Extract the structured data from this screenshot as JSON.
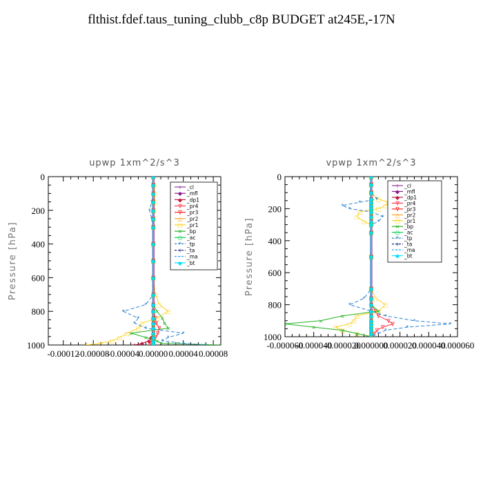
{
  "title": "flthist.fdef.taus_tuning_clubb_c8p  BUDGET at245E,-17N",
  "legend_entries": [
    "_cl",
    "_mfl",
    "_dp1",
    "_pr4",
    "_pr3",
    "_pr2",
    "_pr1",
    "_bp",
    "_ac",
    "_tp",
    "_ta",
    "_ma",
    "_bt"
  ],
  "series_colors": {
    "_cl": "#8e3a9e",
    "_mfl": "#8b1a8b",
    "_dp1": "#c0163c",
    "_pr4": "#ff3344",
    "_pr3": "#ff2020",
    "_pr2": "#ffa020",
    "_pr1": "#ffd21e",
    "_bp": "#22b022",
    "_ac": "#00d050",
    "_tp": "#2a7fd0",
    "_ta": "#10207f",
    "_ma": "#1e90ff",
    "_bt": "#00e0ff"
  },
  "chart_data": [
    {
      "type": "line",
      "title": "upwp  1xm^2/s^3",
      "ylabel": "Pressure [hPa]",
      "xlabel": "",
      "xlim": [
        -0.00014,
        9e-05
      ],
      "ylim": [
        1000,
        0
      ],
      "xticks": [
        -0.00012,
        -8e-05,
        -4e-05,
        0.0,
        4e-05,
        8e-05
      ],
      "xtick_labels": [
        "-0.00012",
        "-0.00008",
        "-0.00004",
        "0.00000",
        "0.00004",
        "0.00008"
      ],
      "yticks": [
        0,
        200,
        400,
        600,
        800,
        1000
      ],
      "ytick_labels": [
        "0",
        "200",
        "400",
        "600",
        "800",
        "1000"
      ],
      "legend_position": "top-right",
      "levels": [
        0,
        50,
        100,
        150,
        200,
        250,
        300,
        400,
        500,
        600,
        700,
        760,
        800,
        840,
        870,
        900,
        930,
        955,
        975,
        990,
        1000
      ],
      "series": [
        {
          "name": "_cl",
          "values": [
            0,
            0,
            0,
            0,
            0,
            0,
            0,
            0,
            0,
            0,
            0,
            0,
            0,
            0,
            0,
            0,
            0,
            0,
            0,
            0,
            0
          ]
        },
        {
          "name": "_mfl",
          "values": [
            0,
            0,
            0,
            0,
            0,
            0,
            0,
            0,
            0,
            0,
            0,
            0,
            0,
            0,
            0,
            0,
            0,
            0,
            0,
            0,
            0
          ]
        },
        {
          "name": "_dp1",
          "values": [
            0,
            0,
            0,
            0,
            0,
            0,
            0,
            0,
            0,
            0,
            0,
            0,
            0,
            0,
            0,
            0,
            0,
            -3e-06,
            -6e-06,
            -1.5e-05,
            -2.5e-05
          ]
        },
        {
          "name": "_pr4",
          "values": [
            0,
            0,
            0,
            0,
            0,
            0,
            0,
            0,
            0,
            0,
            0,
            0,
            0,
            3e-06,
            4e-06,
            8e-06,
            6e-06,
            3e-06,
            -2e-06,
            -5e-06,
            0
          ]
        },
        {
          "name": "_pr3",
          "values": [
            0,
            0,
            0,
            0,
            0,
            0,
            0,
            0,
            0,
            0,
            0,
            0,
            0,
            0,
            0,
            0,
            0,
            0,
            0,
            0,
            0
          ]
        },
        {
          "name": "_pr2",
          "values": [
            0,
            0,
            0,
            0,
            0,
            0,
            0,
            0,
            0,
            0,
            0,
            0,
            0,
            0,
            0,
            0,
            0,
            0,
            0,
            0,
            0
          ]
        },
        {
          "name": "_pr1",
          "values": [
            0,
            1e-06,
            2e-06,
            2e-06,
            1e-06,
            0,
            0,
            0,
            0,
            0,
            3e-06,
            8e-06,
            2e-05,
            5e-06,
            -1.5e-05,
            -2e-05,
            -3.5e-05,
            -4.5e-05,
            -5.5e-05,
            -7e-05,
            -9e-05
          ]
        },
        {
          "name": "_bp",
          "values": [
            0,
            0,
            0,
            0,
            0,
            0,
            0,
            0,
            0,
            0,
            0,
            0,
            5e-06,
            1.2e-05,
            1.5e-05,
            2e-05,
            -3e-05,
            -1e-05,
            5e-06,
            1e-05,
            9e-05
          ]
        },
        {
          "name": "_ac",
          "values": [
            0,
            0,
            0,
            0,
            0,
            0,
            0,
            0,
            0,
            0,
            0,
            0,
            0,
            0,
            0,
            0,
            0,
            0,
            0,
            0,
            0
          ]
        },
        {
          "name": "_tp",
          "values": [
            0,
            -5e-07,
            0,
            -2e-06,
            -5e-06,
            -2e-06,
            0,
            0,
            0,
            0,
            0,
            -1e-05,
            -4e-05,
            -2e-05,
            -2.5e-05,
            -1e-05,
            4e-05,
            2e-05,
            1.2e-05,
            4e-05,
            7e-05
          ]
        },
        {
          "name": "_ta",
          "values": [
            0,
            0,
            0,
            0,
            0,
            0,
            0,
            0,
            0,
            0,
            0,
            0,
            0,
            0,
            0,
            0,
            0,
            0,
            0,
            0,
            0
          ]
        },
        {
          "name": "_ma",
          "values": [
            0,
            0,
            0,
            0,
            0,
            0,
            0,
            0,
            0,
            0,
            0,
            0,
            0,
            0,
            0,
            0,
            0,
            0,
            0,
            0,
            0
          ]
        },
        {
          "name": "_bt",
          "values": [
            0,
            0,
            0,
            0,
            0,
            0,
            0,
            0,
            0,
            0,
            0,
            0,
            0,
            0,
            0,
            0,
            0,
            0,
            0,
            0,
            0
          ]
        }
      ]
    },
    {
      "type": "line",
      "title": "vpwp  1xm^2/s^3",
      "ylabel": "Pressure [hPa]",
      "xlabel": "",
      "xlim": [
        -6e-05,
        6e-05
      ],
      "ylim": [
        1000,
        0
      ],
      "xticks": [
        -6e-05,
        -4e-05,
        -2e-05,
        0.0,
        2e-05,
        4e-05,
        6e-05
      ],
      "xtick_labels": [
        "-0.000060",
        "-0.000040",
        "-0.000020",
        "0.000000",
        "0.000020",
        "0.000040",
        "0.000060"
      ],
      "yticks": [
        0,
        200,
        400,
        600,
        800,
        1000
      ],
      "ytick_labels": [
        "0",
        "200",
        "400",
        "600",
        "800",
        "1000"
      ],
      "legend_position": "top-right",
      "levels": [
        0,
        50,
        100,
        140,
        160,
        180,
        200,
        220,
        250,
        280,
        300,
        350,
        500,
        700,
        760,
        800,
        840,
        870,
        900,
        920,
        940,
        960,
        980,
        1000
      ],
      "series": [
        {
          "name": "_cl",
          "values": [
            0,
            0,
            0,
            0,
            0,
            0,
            0,
            0,
            0,
            0,
            0,
            0,
            0,
            0,
            0,
            0,
            0,
            0,
            0,
            0,
            0,
            0,
            0,
            0
          ]
        },
        {
          "name": "_mfl",
          "values": [
            0,
            0,
            0,
            0,
            0,
            0,
            0,
            0,
            0,
            0,
            0,
            0,
            0,
            0,
            0,
            0,
            0,
            0,
            0,
            0,
            0,
            0,
            0,
            0
          ]
        },
        {
          "name": "_dp1",
          "values": [
            0,
            0,
            0,
            0,
            0,
            0,
            0,
            0,
            0,
            0,
            0,
            0,
            0,
            0,
            0,
            0,
            0,
            0,
            0,
            0,
            0,
            0,
            0,
            0
          ]
        },
        {
          "name": "_pr4",
          "values": [
            0,
            0,
            0,
            0,
            0,
            0,
            0,
            0,
            0,
            0,
            0,
            0,
            0,
            0,
            0,
            0,
            3e-06,
            5e-06,
            1.2e-05,
            1.5e-05,
            8e-06,
            4e-06,
            2e-06,
            0
          ]
        },
        {
          "name": "_pr3",
          "values": [
            0,
            0,
            0,
            0,
            0,
            0,
            0,
            0,
            0,
            0,
            0,
            0,
            0,
            0,
            0,
            0,
            0,
            0,
            0,
            0,
            0,
            0,
            0,
            0
          ]
        },
        {
          "name": "_pr2",
          "values": [
            0,
            0,
            0,
            0,
            0,
            0,
            0,
            0,
            0,
            0,
            0,
            0,
            0,
            0,
            0,
            0,
            0,
            0,
            0,
            0,
            0,
            0,
            0,
            0
          ]
        },
        {
          "name": "_pr1",
          "values": [
            0,
            0,
            0,
            5e-06,
            1.2e-05,
            1e-05,
            5e-06,
            -8e-06,
            -1e-05,
            -5e-06,
            0,
            0,
            0,
            0,
            3e-06,
            1e-05,
            5e-06,
            -1e-05,
            -1.2e-05,
            -1.5e-05,
            -2.5e-05,
            -2e-05,
            -1e-05,
            0
          ]
        },
        {
          "name": "_bp",
          "values": [
            0,
            0,
            0,
            0,
            0,
            0,
            0,
            0,
            0,
            0,
            0,
            0,
            0,
            0,
            0,
            0,
            5e-06,
            -2e-05,
            -3.5e-05,
            -6e-05,
            -4e-05,
            -2e-05,
            -1e-05,
            0
          ]
        },
        {
          "name": "_ac",
          "values": [
            0,
            0,
            0,
            0,
            0,
            0,
            0,
            0,
            0,
            0,
            0,
            0,
            0,
            0,
            0,
            0,
            0,
            0,
            0,
            0,
            0,
            0,
            0,
            0
          ]
        },
        {
          "name": "_tp",
          "values": [
            0,
            0,
            0,
            4e-06,
            -8e-06,
            -2e-05,
            -1.5e-05,
            0,
            8e-06,
            5e-06,
            0,
            0,
            0,
            0,
            -5e-06,
            -1.5e-05,
            0,
            1e-05,
            3e-05,
            5.5e-05,
            2.5e-05,
            1e-05,
            5e-06,
            0
          ]
        },
        {
          "name": "_ta",
          "values": [
            0,
            0,
            0,
            0,
            0,
            0,
            0,
            0,
            0,
            0,
            0,
            0,
            0,
            0,
            0,
            0,
            0,
            0,
            0,
            0,
            0,
            0,
            0,
            0
          ]
        },
        {
          "name": "_ma",
          "values": [
            0,
            0,
            0,
            0,
            0,
            0,
            0,
            0,
            0,
            0,
            0,
            0,
            0,
            0,
            0,
            0,
            0,
            0,
            0,
            0,
            0,
            0,
            0,
            0
          ]
        },
        {
          "name": "_bt",
          "values": [
            0,
            0,
            0,
            0,
            0,
            0,
            0,
            0,
            0,
            0,
            0,
            0,
            0,
            0,
            0,
            0,
            0,
            0,
            0,
            0,
            0,
            0,
            0,
            0
          ]
        }
      ]
    }
  ]
}
